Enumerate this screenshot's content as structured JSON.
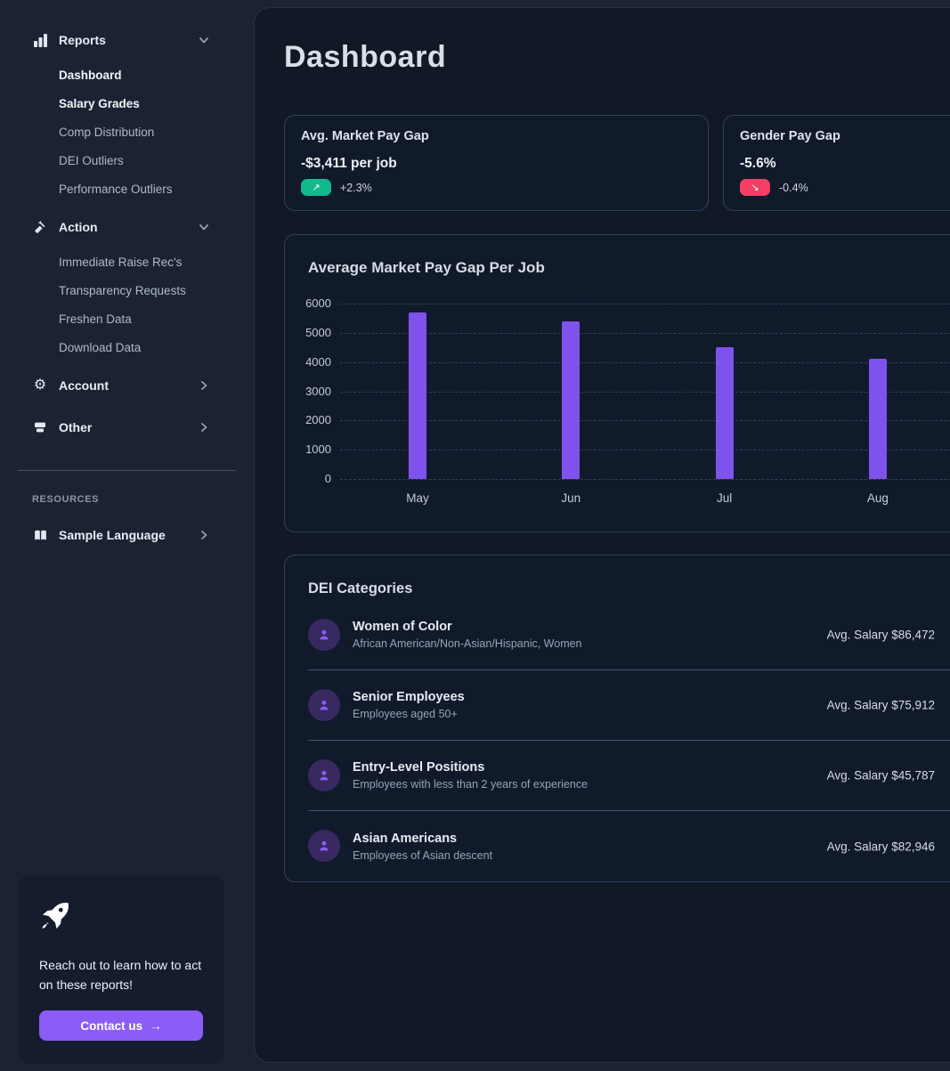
{
  "header": {
    "title": "Dashboard"
  },
  "sidebar": {
    "sections": [
      {
        "label": "Reports",
        "icon": "bar-chart-icon",
        "chevron": "down",
        "items": [
          "Dashboard",
          "Salary Grades",
          "Comp Distribution",
          "DEI Outliers",
          "Performance Outliers"
        ]
      },
      {
        "label": "Action",
        "icon": "hammer-icon",
        "chevron": "down",
        "items": [
          "Immediate Raise Rec's",
          "Transparency Requests",
          "Freshen Data",
          "Download Data"
        ]
      },
      {
        "label": "Account",
        "icon": "gear-icon",
        "chevron": "right",
        "items": []
      },
      {
        "label": "Other",
        "icon": "archive-icon",
        "chevron": "right",
        "items": []
      }
    ],
    "resources_label": "RESOURCES",
    "resources_item": {
      "label": "Sample Language",
      "icon": "book-icon",
      "chevron": "right"
    },
    "promo": {
      "icon": "rocket-icon",
      "text_line1": "Reach out to learn how to act",
      "text_line2": "on these reports!",
      "button_label": "Contact us",
      "button_arrow": "→",
      "button_color": "#8b5cf6"
    }
  },
  "stat_cards": [
    {
      "title": "Avg. Market Pay Gap",
      "value": "-$3,411 per job",
      "delta": "+2.3%",
      "trend": "up",
      "arrow": "↗",
      "badge_color": "#10ba8c"
    },
    {
      "title": "Gender Pay Gap",
      "value": "-5.6%",
      "delta": "-0.4%",
      "trend": "down",
      "arrow": "↘",
      "badge_color": "#f43f63"
    }
  ],
  "chart_data": {
    "type": "bar",
    "title": "Average Market Pay Gap Per Job",
    "categories": [
      "May",
      "Jun",
      "Jul",
      "Aug"
    ],
    "values": [
      5700,
      5400,
      4500,
      4100
    ],
    "xlabel": "",
    "ylabel": "",
    "ylim": [
      0,
      6000
    ],
    "yticks": [
      0,
      1000,
      2000,
      3000,
      4000,
      5000,
      6000
    ],
    "grid": "horizontal-dashed",
    "legend": "none",
    "bar_color": "#7f52ec"
  },
  "dei": {
    "title": "DEI Categories",
    "salary_prefix": "Avg. Salary",
    "avatar_icon": "person-icon",
    "avatar_bg": "#382a61",
    "avatar_icon_color": "#8b5cf6",
    "rows": [
      {
        "name": "Women of Color",
        "description": "African American/Non-Asian/Hispanic, Women",
        "salary": "$86,472"
      },
      {
        "name": "Senior Employees",
        "description": "Employees aged 50+",
        "salary": "$75,912"
      },
      {
        "name": "Entry-Level Positions",
        "description": "Employees with less than 2 years of experience",
        "salary": "$45,787"
      },
      {
        "name": "Asian Americans",
        "description": "Employees of Asian descent",
        "salary": "$82,946"
      }
    ]
  },
  "icons": {
    "gear_glyph": "⚙",
    "up_right_arrow": "↗",
    "down_right_arrow": "↘",
    "right_arrow": "→"
  }
}
